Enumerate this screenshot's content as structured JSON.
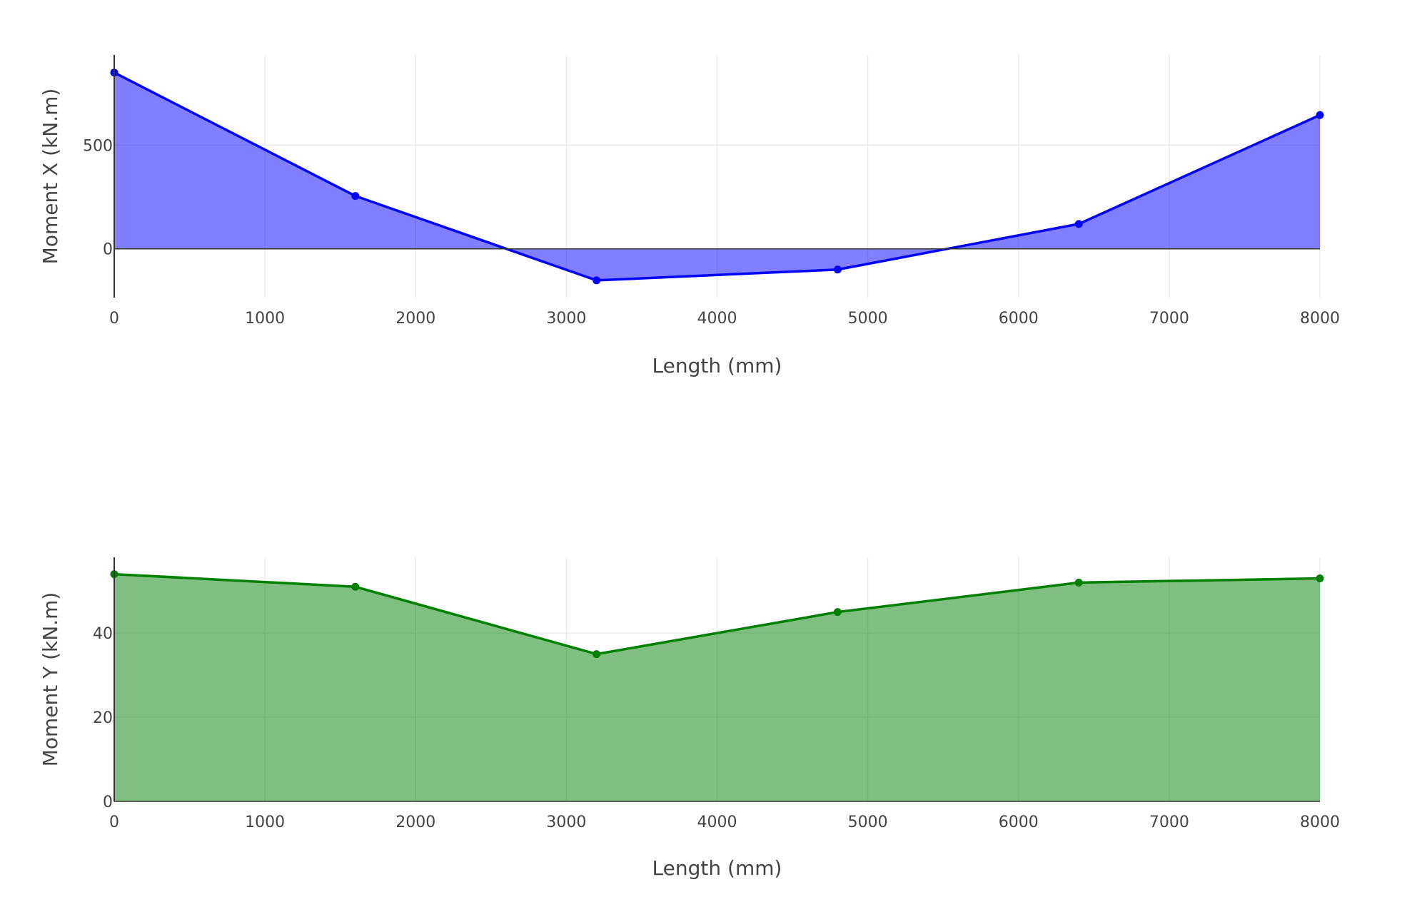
{
  "chart_data": [
    {
      "type": "area",
      "x": [
        0,
        1600,
        3200,
        4800,
        6400,
        8000
      ],
      "series": [
        {
          "values": [
            850,
            255,
            -152,
            -100,
            120,
            645
          ],
          "color": "#0000ff",
          "fill": "rgba(0,0,255,0.5)"
        }
      ],
      "xlabel": "Length (mm)",
      "ylabel": "Moment X (kN.m)",
      "xlim": [
        0,
        8000
      ],
      "ylim": [
        -235,
        935
      ],
      "xticks": [
        0,
        1000,
        2000,
        3000,
        4000,
        5000,
        6000,
        7000,
        8000
      ],
      "yticks": [
        0,
        500
      ],
      "grid": true,
      "markers": true
    },
    {
      "type": "area",
      "x": [
        0,
        1600,
        3200,
        4800,
        6400,
        8000
      ],
      "series": [
        {
          "values": [
            54,
            51,
            35,
            45,
            52,
            53
          ],
          "color": "#008000",
          "fill": "rgba(0,128,0,0.5)"
        }
      ],
      "xlabel": "Length (mm)",
      "ylabel": "Moment Y (kN.m)",
      "xlim": [
        0,
        8000
      ],
      "ylim": [
        0,
        58
      ],
      "xticks": [
        0,
        1000,
        2000,
        3000,
        4000,
        5000,
        6000,
        7000,
        8000
      ],
      "yticks": [
        0,
        20,
        40
      ],
      "grid": true,
      "markers": true
    }
  ]
}
